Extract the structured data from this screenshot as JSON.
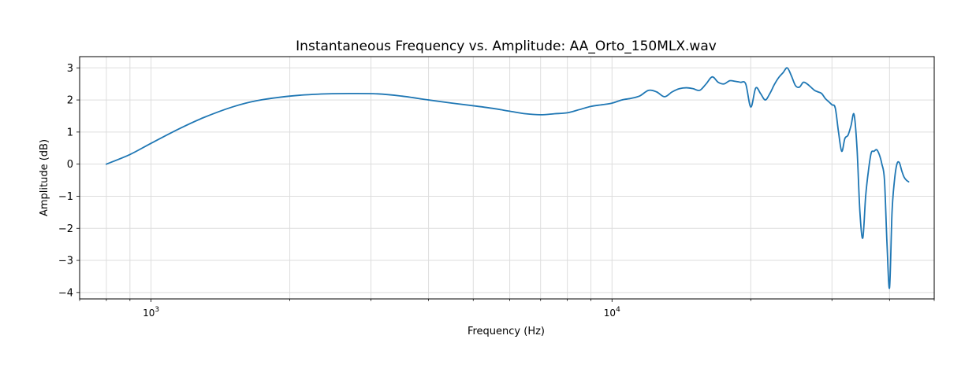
{
  "chart_data": {
    "type": "line",
    "title": "Instantaneous Frequency vs. Amplitude: AA_Orto_150MLX.wav",
    "xlabel": "Frequency (Hz)",
    "ylabel": "Amplitude (dB)",
    "x_scale": "log",
    "xlim": [
      700,
      50000
    ],
    "ylim": [
      -4.2,
      3.35
    ],
    "grid": true,
    "line_color": "#1f77b4",
    "x_major_ticks": [
      {
        "value": 1000,
        "base": "10",
        "exp": "3"
      },
      {
        "value": 10000,
        "base": "10",
        "exp": "4"
      }
    ],
    "x_minor_ticks": [
      700,
      800,
      900,
      2000,
      3000,
      4000,
      5000,
      6000,
      7000,
      8000,
      9000,
      20000,
      30000,
      40000,
      50000
    ],
    "y_ticks": [
      {
        "value": 3,
        "label": "3"
      },
      {
        "value": 2,
        "label": "2"
      },
      {
        "value": 1,
        "label": "1"
      },
      {
        "value": 0,
        "label": "0"
      },
      {
        "value": -1,
        "label": "−1"
      },
      {
        "value": -2,
        "label": "−2"
      },
      {
        "value": -3,
        "label": "−3"
      },
      {
        "value": -4,
        "label": "−4"
      }
    ],
    "series": [
      {
        "x": [
          800,
          900,
          1000,
          1150,
          1300,
          1500,
          1700,
          2000,
          2300,
          2700,
          3100,
          3500,
          4000,
          4500,
          5000,
          5500,
          6000,
          6500,
          7000,
          7500,
          8000,
          8500,
          9000,
          9500,
          10000,
          10500,
          11000,
          11500,
          12000,
          12500,
          13000,
          13500,
          14000,
          14500,
          15000,
          15500,
          16000,
          16500,
          17000,
          17500,
          18000,
          18500,
          19000,
          19500,
          20000,
          20500,
          21000,
          21500,
          22000,
          22500,
          23000,
          23500,
          24000,
          24500,
          25000,
          25500,
          26000,
          26500,
          27000,
          27500,
          28000,
          28500,
          29000,
          29500,
          30000,
          30500,
          31000,
          31500,
          32000,
          32500,
          33000,
          33500,
          34000,
          34500,
          35000,
          35500,
          36000,
          36500,
          37000,
          37500,
          38000,
          38500,
          39000,
          39500,
          40000,
          40500,
          41000,
          41500,
          42000,
          42500,
          43000,
          43500,
          44000
        ],
        "y": [
          0.0,
          0.3,
          0.65,
          1.1,
          1.45,
          1.78,
          1.98,
          2.12,
          2.18,
          2.2,
          2.19,
          2.12,
          2.0,
          1.9,
          1.82,
          1.74,
          1.65,
          1.57,
          1.54,
          1.57,
          1.6,
          1.7,
          1.8,
          1.85,
          1.9,
          2.0,
          2.05,
          2.13,
          2.3,
          2.25,
          2.1,
          2.25,
          2.35,
          2.38,
          2.35,
          2.3,
          2.5,
          2.72,
          2.55,
          2.5,
          2.6,
          2.58,
          2.55,
          2.5,
          1.78,
          2.37,
          2.2,
          2.0,
          2.2,
          2.48,
          2.7,
          2.85,
          3.0,
          2.75,
          2.45,
          2.4,
          2.55,
          2.5,
          2.4,
          2.3,
          2.25,
          2.2,
          2.05,
          1.95,
          1.85,
          1.75,
          1.0,
          0.4,
          0.8,
          0.9,
          1.2,
          1.55,
          0.5,
          -1.5,
          -2.3,
          -1.0,
          -0.2,
          0.35,
          0.4,
          0.45,
          0.3,
          0.0,
          -0.5,
          -2.5,
          -3.85,
          -1.5,
          -0.5,
          0.0,
          0.05,
          -0.2,
          -0.4,
          -0.5,
          -0.55
        ]
      }
    ]
  }
}
